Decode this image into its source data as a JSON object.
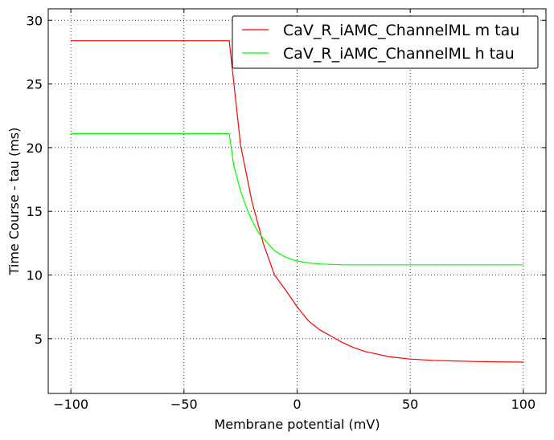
{
  "chart_data": {
    "type": "line",
    "xlabel": "Membrane potential (mV)",
    "ylabel": "Time Course - tau (ms)",
    "xlim": [
      -110,
      110
    ],
    "ylim": [
      0.7,
      30.9
    ],
    "xticks": [
      -100,
      -50,
      0,
      50,
      100
    ],
    "yticks": [
      5,
      10,
      15,
      20,
      25,
      30
    ],
    "xtick_labels": [
      "−100",
      "−50",
      "0",
      "50",
      "100"
    ],
    "ytick_labels": [
      "5",
      "10",
      "15",
      "20",
      "25",
      "30"
    ],
    "grid": true,
    "legend_position": "top-right",
    "series": [
      {
        "name": "CaV_R_iAMC_ChannelML m tau",
        "color": "#ff0000",
        "x": [
          -100,
          -90,
          -80,
          -70,
          -60,
          -50,
          -40,
          -30,
          -25,
          -20,
          -15,
          -10,
          -5,
          0,
          5,
          10,
          15,
          20,
          25,
          30,
          35,
          40,
          45,
          50,
          60,
          70,
          80,
          90,
          100
        ],
        "y": [
          28.4,
          28.4,
          28.4,
          28.4,
          28.4,
          28.4,
          28.4,
          28.4,
          20.2,
          15.8,
          12.5,
          10.0,
          8.8,
          7.5,
          6.4,
          5.7,
          5.2,
          4.7,
          4.3,
          4.0,
          3.8,
          3.6,
          3.5,
          3.4,
          3.3,
          3.25,
          3.2,
          3.18,
          3.16
        ]
      },
      {
        "name": "CaV_R_iAMC_ChannelML h tau",
        "color": "#00ff00",
        "x": [
          -100,
          -90,
          -80,
          -70,
          -60,
          -50,
          -40,
          -30,
          -28,
          -25,
          -22,
          -20,
          -17,
          -15,
          -12,
          -10,
          -7,
          -5,
          -2,
          0,
          5,
          10,
          15,
          20,
          30,
          40,
          50,
          60,
          70,
          80,
          90,
          100
        ],
        "y": [
          21.1,
          21.1,
          21.1,
          21.1,
          21.1,
          21.1,
          21.1,
          21.1,
          18.6,
          16.6,
          15.1,
          14.3,
          13.3,
          12.9,
          12.3,
          11.9,
          11.6,
          11.4,
          11.2,
          11.1,
          10.95,
          10.87,
          10.83,
          10.8,
          10.8,
          10.8,
          10.8,
          10.8,
          10.8,
          10.8,
          10.8,
          10.8
        ]
      }
    ]
  }
}
